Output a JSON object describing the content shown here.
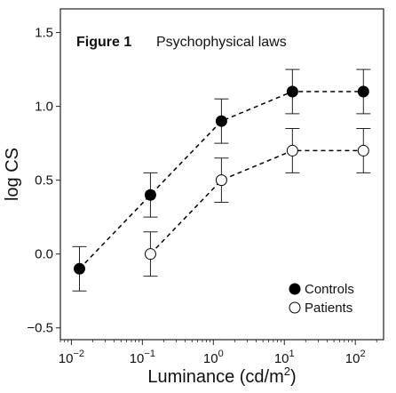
{
  "chart_data": {
    "type": "scatter",
    "figure_label": "Figure 1",
    "title": "Psychophysical laws",
    "xlabel": "Luminance (cd/m2)",
    "xlabel_parts": {
      "prefix": "Luminance (cd/m",
      "sup": "2",
      "suffix": ")"
    },
    "ylabel": "log CS",
    "x_scale": "log",
    "xlim": [
      0.007,
      250
    ],
    "ylim": [
      -0.58,
      1.66
    ],
    "x_ticks": [
      {
        "value": 0.01,
        "base": "10",
        "exp": "−2"
      },
      {
        "value": 0.1,
        "base": "10",
        "exp": "−1"
      },
      {
        "value": 1,
        "base": "10",
        "exp": "0"
      },
      {
        "value": 10,
        "base": "10",
        "exp": "1"
      },
      {
        "value": 100,
        "base": "10",
        "exp": "2"
      }
    ],
    "y_ticks": [
      {
        "value": -0.5,
        "label": "−0.5"
      },
      {
        "value": 0.0,
        "label": "0.0"
      },
      {
        "value": 0.5,
        "label": "0.5"
      },
      {
        "value": 1.0,
        "label": "1.0"
      },
      {
        "value": 1.5,
        "label": "1.5"
      }
    ],
    "grid": false,
    "legend_position": "bottom-right",
    "series": [
      {
        "name": "Controls",
        "marker": "filled-circle",
        "line": "dashed",
        "color": "#000000",
        "x": [
          0.013,
          0.13,
          1.3,
          13,
          130
        ],
        "y": [
          -0.1,
          0.4,
          0.9,
          1.1,
          1.1
        ],
        "err": [
          0.15,
          0.15,
          0.15,
          0.15,
          0.15
        ]
      },
      {
        "name": "Patients",
        "marker": "open-circle",
        "line": "dashed",
        "color": "#000000",
        "x": [
          0.13,
          1.3,
          13,
          130
        ],
        "y": [
          0.0,
          0.5,
          0.7,
          0.7
        ],
        "err": [
          0.15,
          0.15,
          0.15,
          0.15
        ]
      }
    ]
  }
}
